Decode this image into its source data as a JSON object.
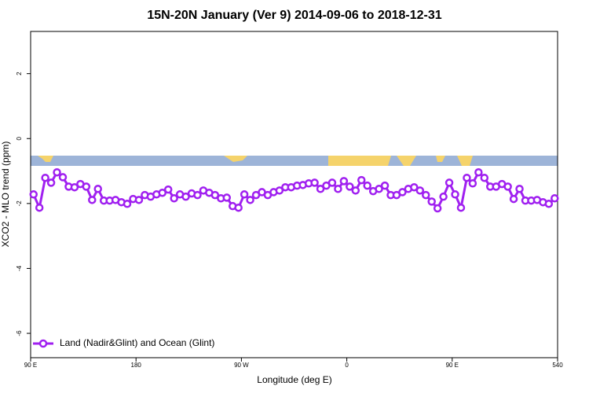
{
  "chart_data": {
    "type": "line",
    "title": "15N-20N January (Ver 9)   2014-09-06 to 2018-12-31",
    "xlabel": "Longitude (deg E)",
    "ylabel": "XCO2 - MLO trend (ppm)",
    "xlim": [
      90,
      540
    ],
    "xticks": [
      {
        "value": 90,
        "label": "90 E"
      },
      180,
      {
        "value": 270,
        "label": "90 W"
      },
      {
        "value": 360,
        "label": "0"
      },
      {
        "value": 450,
        "label": "90 E"
      },
      540
    ],
    "ylim": [
      -6.75,
      3.3
    ],
    "yticks": [
      -6,
      -4,
      -2,
      0,
      2
    ],
    "legend": "bottom-left",
    "x": [
      92.5,
      97.5,
      102.5,
      107.5,
      112.5,
      117.5,
      122.5,
      127.5,
      132.5,
      137.5,
      142.5,
      147.5,
      152.5,
      157.5,
      162.5,
      167.5,
      172.5,
      177.5,
      182.5,
      187.5,
      192.5,
      197.5,
      202.5,
      207.5,
      212.5,
      217.5,
      222.5,
      227.5,
      232.5,
      237.5,
      242.5,
      247.5,
      252.5,
      257.5,
      262.5,
      267.5,
      272.5,
      277.5,
      282.5,
      287.5,
      292.5,
      297.5,
      302.5,
      307.5,
      312.5,
      317.5,
      322.5,
      327.5,
      332.5,
      337.5,
      342.5,
      347.5,
      352.5,
      357.5,
      362.5,
      367.5,
      372.5,
      377.5,
      382.5,
      387.5,
      392.5,
      397.5,
      402.5,
      407.5,
      412.5,
      417.5,
      422.5,
      427.5,
      432.5,
      437.5,
      442.5,
      447.5,
      452.5,
      457.5,
      462.5,
      467.5,
      472.5,
      477.5,
      482.5,
      487.5,
      492.5,
      497.5,
      502.5,
      507.5,
      512.5,
      517.5,
      522.5,
      527.5,
      532.5,
      537.5
    ],
    "series": [
      {
        "name": "Land (Nadir&Glint) and Ocean (Glint)",
        "color": "#a020f0",
        "values": [
          -1.72,
          -2.13,
          -1.21,
          -1.36,
          -1.04,
          -1.19,
          -1.48,
          -1.5,
          -1.4,
          -1.48,
          -1.89,
          -1.55,
          -1.91,
          -1.91,
          -1.89,
          -1.96,
          -2.01,
          -1.86,
          -1.89,
          -1.74,
          -1.79,
          -1.72,
          -1.67,
          -1.57,
          -1.84,
          -1.72,
          -1.79,
          -1.69,
          -1.74,
          -1.6,
          -1.67,
          -1.74,
          -1.84,
          -1.82,
          -2.08,
          -2.13,
          -1.72,
          -1.89,
          -1.74,
          -1.65,
          -1.74,
          -1.65,
          -1.6,
          -1.5,
          -1.5,
          -1.45,
          -1.43,
          -1.38,
          -1.36,
          -1.55,
          -1.45,
          -1.36,
          -1.55,
          -1.31,
          -1.48,
          -1.6,
          -1.28,
          -1.45,
          -1.62,
          -1.55,
          -1.45,
          -1.74,
          -1.74,
          -1.65,
          -1.55,
          -1.5,
          -1.6,
          -1.74,
          -1.94,
          -2.15,
          -1.79,
          -1.36,
          -1.72,
          -2.13,
          -1.21,
          -1.38,
          -1.04,
          -1.21,
          -1.48,
          -1.48,
          -1.4,
          -1.48,
          -1.86,
          -1.55,
          -1.91,
          -1.91,
          -1.89,
          -1.96,
          -2.01,
          -1.84
        ]
      }
    ]
  }
}
